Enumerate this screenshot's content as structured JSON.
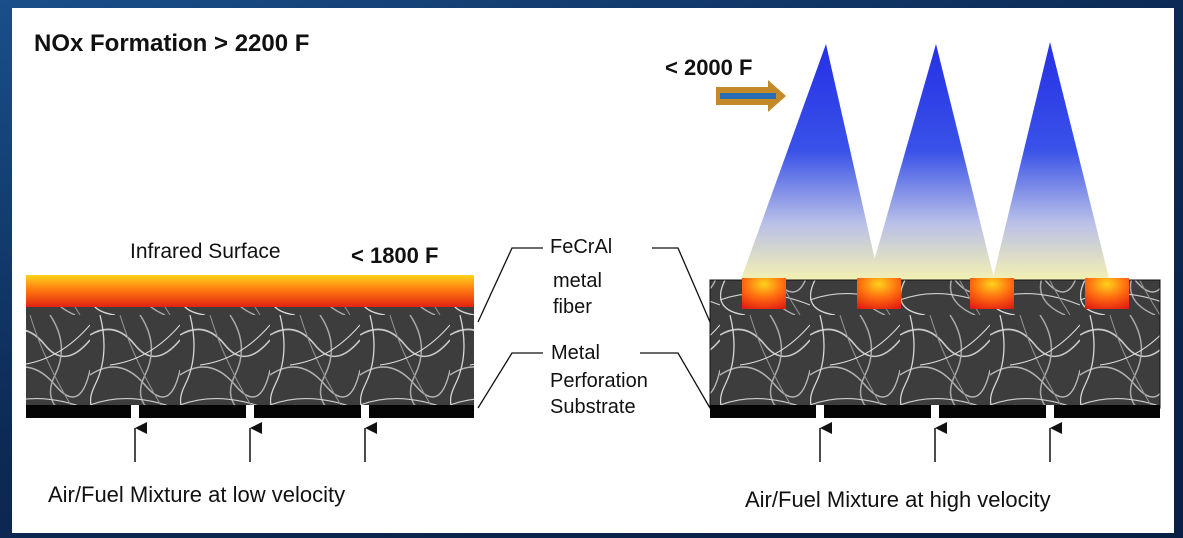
{
  "title": "NOx Formation > 2200 F",
  "flame_temp_label": "< 2000 F",
  "surface_temp_label": "< 1800 F",
  "infrared_surface_label": "Infrared Surface",
  "fiber_label": {
    "line1": "FeCrAl",
    "line2": "metal",
    "line3": "fiber"
  },
  "substrate_label": {
    "line1": "Metal",
    "line2": "Perforation",
    "line3": "Substrate"
  },
  "low_velocity_caption": "Air/Fuel Mixture at low velocity",
  "high_velocity_caption": "Air/Fuel Mixture at high velocity",
  "colors": {
    "flame_blue": "#1f2fe0",
    "flame_tip": "#f3f0b4",
    "surface_red": "#e41f12",
    "surface_yellow": "#ffe01a",
    "arrow_orange": "#c48a2a",
    "arrow_blue": "#2a6fb5",
    "background_blue": "#0c2a55"
  }
}
